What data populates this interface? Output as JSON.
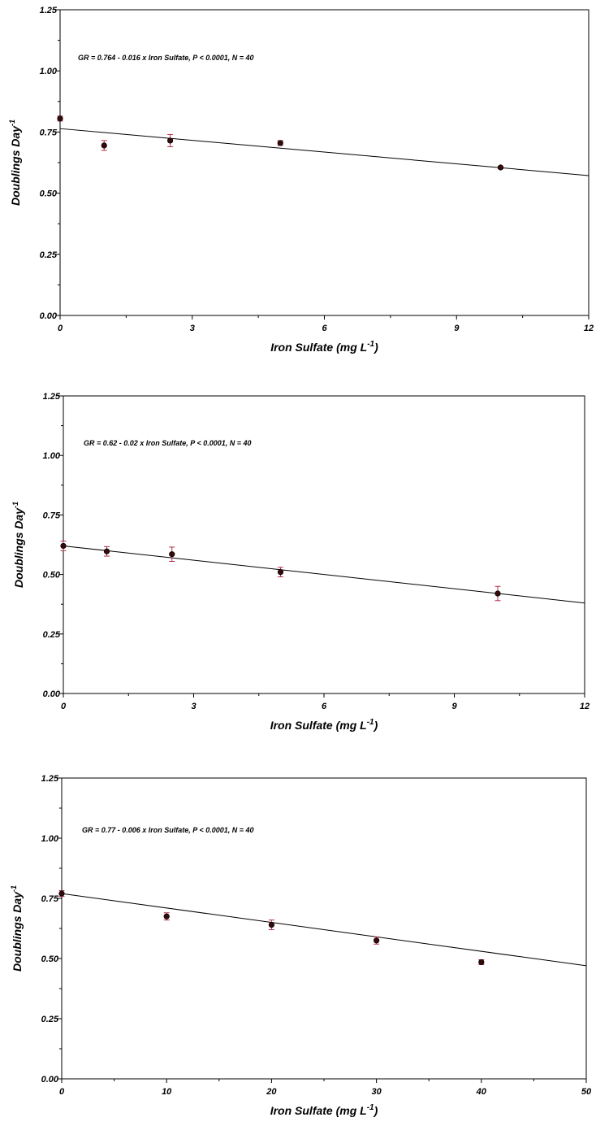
{
  "chart_data": [
    {
      "type": "scatter",
      "title": "",
      "annotation": "GR = 0.764 - 0.016 x Iron Sulfate, P < 0.0001, N = 40",
      "xlabel": {
        "main": "Iron Sulfate (mg L",
        "sup": "-1",
        "close": ")"
      },
      "ylabel": {
        "main": "Doublings Day",
        "sup": "-1"
      },
      "xlim": [
        0,
        12
      ],
      "ylim": [
        0,
        1.25
      ],
      "xticks": [
        0,
        3,
        6,
        9,
        12
      ],
      "xtick_labels": [
        "0",
        "3",
        "6",
        "9",
        "12"
      ],
      "yticks": [
        0,
        0.25,
        0.5,
        0.75,
        1.0,
        1.25
      ],
      "ytick_labels": [
        "0.00",
        "0.25",
        "0.50",
        "0.75",
        "1.00",
        "1.25"
      ],
      "series": [
        {
          "x": [
            0,
            1,
            2.5,
            5,
            10
          ],
          "y": [
            0.805,
            0.695,
            0.715,
            0.705,
            0.605
          ],
          "err": [
            0.01,
            0.02,
            0.025,
            0.01,
            0.005
          ]
        }
      ],
      "fit_line": {
        "intercept": 0.764,
        "slope": -0.016
      },
      "grid": false
    },
    {
      "type": "scatter",
      "title": "",
      "annotation": "GR = 0.62 - 0.02 x Iron Sulfate, P < 0.0001, N = 40",
      "xlabel": {
        "main": "Iron Sulfate (mg L",
        "sup": "-1",
        "close": ")"
      },
      "ylabel": {
        "main": "Doublings Day",
        "sup": "-1"
      },
      "xlim": [
        0,
        12
      ],
      "ylim": [
        0,
        1.25
      ],
      "xticks": [
        0,
        3,
        6,
        9,
        12
      ],
      "xtick_labels": [
        "0",
        "3",
        "6",
        "9",
        "12"
      ],
      "yticks": [
        0,
        0.25,
        0.5,
        0.75,
        1.0,
        1.25
      ],
      "ytick_labels": [
        "0.00",
        "0.25",
        "0.50",
        "0.75",
        "1.00",
        "1.25"
      ],
      "series": [
        {
          "x": [
            0,
            1,
            2.5,
            5,
            10
          ],
          "y": [
            0.62,
            0.597,
            0.585,
            0.51,
            0.42
          ],
          "err": [
            0.02,
            0.02,
            0.03,
            0.02,
            0.03
          ]
        }
      ],
      "fit_line": {
        "intercept": 0.62,
        "slope": -0.02
      },
      "grid": false
    },
    {
      "type": "scatter",
      "title": "",
      "annotation": "GR = 0.77 - 0.006 x Iron Sulfate, P < 0.0001, N = 40",
      "xlabel": {
        "main": "Iron Sulfate (mg L",
        "sup": "-1",
        "close": ")"
      },
      "ylabel": {
        "main": "Doublings Day",
        "sup": "-1"
      },
      "xlim": [
        0,
        50
      ],
      "ylim": [
        0,
        1.25
      ],
      "xticks": [
        0,
        10,
        20,
        30,
        40,
        50
      ],
      "xtick_labels": [
        "0",
        "10",
        "20",
        "30",
        "40",
        "50"
      ],
      "yticks": [
        0,
        0.25,
        0.5,
        0.75,
        1.0,
        1.25
      ],
      "ytick_labels": [
        "0.00",
        "0.25",
        "0.50",
        "0.75",
        "1.00",
        "1.25"
      ],
      "series": [
        {
          "x": [
            0,
            10,
            20,
            30,
            40
          ],
          "y": [
            0.77,
            0.675,
            0.64,
            0.575,
            0.485
          ],
          "err": [
            0.012,
            0.015,
            0.02,
            0.015,
            0.01
          ]
        }
      ],
      "fit_line": {
        "intercept": 0.77,
        "slope": -0.006
      },
      "grid": false
    }
  ],
  "colors": {
    "point": "#3a0a0a",
    "point_edge": "#000000",
    "error_bar": "#b03048",
    "line": "#000000",
    "axis": "#000000"
  }
}
